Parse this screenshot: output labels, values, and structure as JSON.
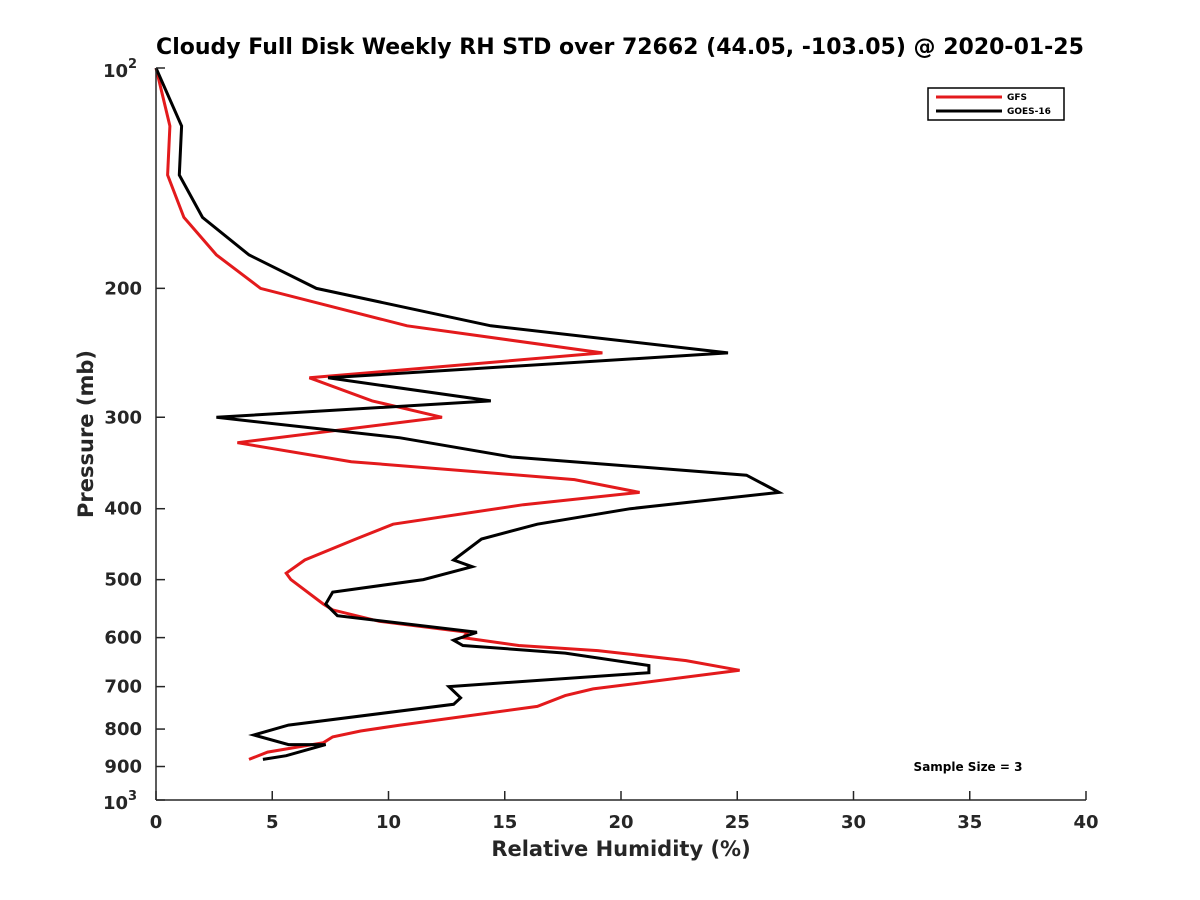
{
  "chart_data": {
    "type": "line",
    "title": "Cloudy Full Disk Weekly RH STD over 72662 (44.05, -103.05) @ 2020-01-25",
    "xlabel": "Relative Humidity (%)",
    "ylabel": "Pressure (mb)",
    "xlim": [
      0,
      40
    ],
    "ylim": [
      100,
      1000
    ],
    "y_scale": "log",
    "y_reversed": true,
    "x_ticks": [
      "0",
      "5",
      "10",
      "15",
      "20",
      "25",
      "30",
      "35",
      "40"
    ],
    "y_ticks": [
      {
        "value": 100,
        "base": "10",
        "exp": "2"
      },
      {
        "value": 200,
        "label": "200"
      },
      {
        "value": 300,
        "label": "300"
      },
      {
        "value": 400,
        "label": "400"
      },
      {
        "value": 500,
        "label": "500"
      },
      {
        "value": 600,
        "label": "600"
      },
      {
        "value": 700,
        "label": "700"
      },
      {
        "value": 800,
        "label": "800"
      },
      {
        "value": 900,
        "label": "900"
      },
      {
        "value": 1000,
        "base": "10",
        "exp": "3"
      }
    ],
    "legend_position": "top-right",
    "grid": false,
    "series": [
      {
        "name": "GFS",
        "color": "#e31a1c",
        "points": [
          [
            0.0,
            100
          ],
          [
            0.6,
            120
          ],
          [
            0.5,
            140
          ],
          [
            1.2,
            160
          ],
          [
            2.6,
            180
          ],
          [
            4.5,
            200
          ],
          [
            10.8,
            225
          ],
          [
            19.2,
            245
          ],
          [
            6.6,
            265
          ],
          [
            9.3,
            285
          ],
          [
            12.3,
            300
          ],
          [
            3.5,
            325
          ],
          [
            8.4,
            345
          ],
          [
            18.0,
            365
          ],
          [
            20.8,
            380
          ],
          [
            15.8,
            395
          ],
          [
            10.2,
            420
          ],
          [
            8.6,
            440
          ],
          [
            6.4,
            470
          ],
          [
            5.6,
            490
          ],
          [
            5.8,
            500
          ],
          [
            7.2,
            540
          ],
          [
            7.6,
            550
          ],
          [
            9.6,
            570
          ],
          [
            13.4,
            590
          ],
          [
            13.2,
            600
          ],
          [
            15.6,
            615
          ],
          [
            19.0,
            625
          ],
          [
            22.8,
            645
          ],
          [
            25.1,
            665
          ],
          [
            18.8,
            705
          ],
          [
            17.6,
            720
          ],
          [
            16.4,
            745
          ],
          [
            10.5,
            790
          ],
          [
            8.8,
            805
          ],
          [
            7.6,
            820
          ],
          [
            7.2,
            835
          ],
          [
            4.8,
            860
          ],
          [
            4.0,
            880
          ]
        ]
      },
      {
        "name": "GOES-16",
        "color": "#000000",
        "points": [
          [
            0.0,
            100
          ],
          [
            1.1,
            120
          ],
          [
            1.0,
            140
          ],
          [
            2.0,
            160
          ],
          [
            4.0,
            180
          ],
          [
            6.9,
            200
          ],
          [
            14.4,
            225
          ],
          [
            24.6,
            245
          ],
          [
            7.4,
            265
          ],
          [
            14.4,
            285
          ],
          [
            2.6,
            300
          ],
          [
            10.5,
            320
          ],
          [
            15.3,
            340
          ],
          [
            25.4,
            360
          ],
          [
            26.8,
            380
          ],
          [
            20.4,
            400
          ],
          [
            16.4,
            420
          ],
          [
            14.0,
            440
          ],
          [
            12.8,
            470
          ],
          [
            13.6,
            480
          ],
          [
            11.5,
            500
          ],
          [
            7.6,
            520
          ],
          [
            7.3,
            540
          ],
          [
            7.8,
            560
          ],
          [
            13.8,
            590
          ],
          [
            12.8,
            605
          ],
          [
            13.2,
            615
          ],
          [
            17.6,
            630
          ],
          [
            21.2,
            655
          ],
          [
            21.2,
            670
          ],
          [
            12.6,
            700
          ],
          [
            13.1,
            725
          ],
          [
            12.8,
            740
          ],
          [
            5.7,
            790
          ],
          [
            4.2,
            815
          ],
          [
            5.7,
            840
          ],
          [
            7.3,
            840
          ],
          [
            5.6,
            870
          ],
          [
            4.6,
            880
          ]
        ]
      }
    ],
    "annotations": [
      {
        "text": "Sample Size = 3"
      }
    ]
  }
}
